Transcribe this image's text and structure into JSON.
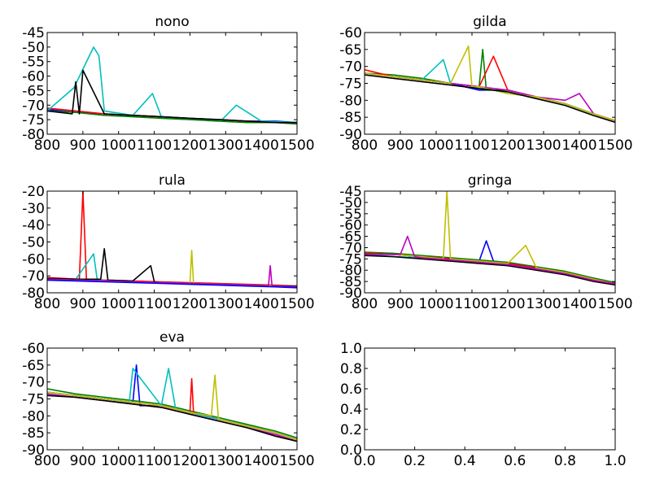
{
  "figure": {
    "background": "#ffffff",
    "line_colors": [
      "#0000ff",
      "#008000",
      "#ff0000",
      "#00bfbf",
      "#bf00bf",
      "#bfbf00",
      "#000000"
    ]
  },
  "chart_data": [
    {
      "type": "line",
      "title": "nono",
      "xlim": [
        800,
        1500
      ],
      "ylim": [
        -80,
        -45
      ],
      "xticks": [
        "800",
        "900",
        "1000",
        "1100",
        "1200",
        "1300",
        "1400",
        "1500"
      ],
      "yticks": [
        "-45",
        "-50",
        "-55",
        "-60",
        "-65",
        "-70",
        "-75",
        "-80"
      ],
      "grid": false,
      "series": [
        {
          "color": "#0000ff",
          "x": [
            800,
            880,
            960,
            1040,
            1120,
            1200,
            1280,
            1360,
            1440,
            1500
          ],
          "y": [
            -71.5,
            -72.5,
            -73,
            -73.5,
            -74,
            -74.5,
            -75,
            -75.5,
            -75.5,
            -76
          ]
        },
        {
          "color": "#008000",
          "x": [
            800,
            880,
            960,
            1040,
            1120,
            1200,
            1280,
            1360,
            1440,
            1500
          ],
          "y": [
            -72,
            -72.5,
            -73.5,
            -74,
            -74.5,
            -75,
            -75.5,
            -76,
            -76,
            -76.5
          ]
        },
        {
          "color": "#ff0000",
          "x": [
            800,
            880,
            960,
            1040,
            1120,
            1200,
            1280,
            1360,
            1440,
            1500
          ],
          "y": [
            -71,
            -72,
            -73,
            -73.5,
            -74,
            -74.5,
            -75,
            -75.5,
            -76,
            -76
          ]
        },
        {
          "color": "#00bfbf",
          "x": [
            800,
            875,
            930,
            945,
            960,
            1040,
            1095,
            1120,
            1200,
            1290,
            1330,
            1400,
            1500
          ],
          "y": [
            -72,
            -64,
            -50,
            -53,
            -72,
            -73.5,
            -66,
            -74,
            -74.5,
            -75,
            -70,
            -75.5,
            -76
          ]
        },
        {
          "color": "#000000",
          "x": [
            800,
            870,
            880,
            890,
            900,
            960,
            1040,
            1120,
            1200,
            1280,
            1360,
            1440,
            1500
          ],
          "y": [
            -72,
            -73,
            -62,
            -73,
            -58,
            -73,
            -73.5,
            -74,
            -74.5,
            -75,
            -75.5,
            -76,
            -76
          ]
        }
      ]
    },
    {
      "type": "line",
      "title": "gilda",
      "xlim": [
        800,
        1500
      ],
      "ylim": [
        -90,
        -60
      ],
      "xticks": [
        "800",
        "900",
        "1000",
        "1100",
        "1200",
        "1300",
        "1400",
        "1500"
      ],
      "yticks": [
        "-60",
        "-65",
        "-70",
        "-75",
        "-80",
        "-85",
        "-90"
      ],
      "grid": false,
      "series": [
        {
          "color": "#0000ff",
          "x": [
            800,
            880,
            960,
            1040,
            1080,
            1120,
            1200,
            1280,
            1360,
            1440,
            1500
          ],
          "y": [
            -72,
            -73,
            -74,
            -75,
            -76,
            -77,
            -77,
            -79,
            -81,
            -84,
            -86
          ]
        },
        {
          "color": "#008000",
          "x": [
            800,
            880,
            960,
            1040,
            1120,
            1130,
            1140,
            1200,
            1280,
            1360,
            1440,
            1500
          ],
          "y": [
            -72,
            -72.5,
            -73.5,
            -75,
            -76,
            -65,
            -77,
            -77,
            -79,
            -81,
            -84,
            -86
          ]
        },
        {
          "color": "#ff0000",
          "x": [
            800,
            880,
            960,
            1040,
            1120,
            1160,
            1200,
            1280,
            1360,
            1440,
            1500
          ],
          "y": [
            -71,
            -73,
            -74,
            -75,
            -76,
            -67,
            -77,
            -79,
            -81,
            -84,
            -86
          ]
        },
        {
          "color": "#00bfbf",
          "x": [
            800,
            880,
            960,
            1020,
            1040,
            1120,
            1200,
            1280,
            1360,
            1440,
            1500
          ],
          "y": [
            -72,
            -73,
            -74,
            -68,
            -75,
            -76,
            -78,
            -79,
            -81,
            -84,
            -86
          ]
        },
        {
          "color": "#bf00bf",
          "x": [
            800,
            880,
            960,
            1040,
            1120,
            1200,
            1280,
            1360,
            1400,
            1440,
            1500
          ],
          "y": [
            -72,
            -73,
            -74,
            -75,
            -76,
            -77,
            -79,
            -80,
            -78,
            -84,
            -86
          ]
        },
        {
          "color": "#bfbf00",
          "x": [
            800,
            880,
            960,
            1040,
            1090,
            1100,
            1120,
            1200,
            1280,
            1360,
            1440,
            1500
          ],
          "y": [
            -72,
            -73,
            -74,
            -75,
            -64,
            -76,
            -76,
            -78,
            -79,
            -81,
            -84,
            -86
          ]
        },
        {
          "color": "#000000",
          "x": [
            800,
            880,
            960,
            1040,
            1120,
            1200,
            1280,
            1360,
            1440,
            1500
          ],
          "y": [
            -72.5,
            -73.5,
            -74.5,
            -75.5,
            -76.5,
            -77.5,
            -79.5,
            -81.5,
            -84.5,
            -86.5
          ]
        }
      ]
    },
    {
      "type": "line",
      "title": "rula",
      "xlim": [
        800,
        1500
      ],
      "ylim": [
        -80,
        -20
      ],
      "xticks": [
        "800",
        "900",
        "1000",
        "1100",
        "1200",
        "1300",
        "1400",
        "1500"
      ],
      "yticks": [
        "-20",
        "-30",
        "-40",
        "-50",
        "-60",
        "-70",
        "-80"
      ],
      "grid": false,
      "series": [
        {
          "color": "#ff0000",
          "x": [
            800,
            890,
            900,
            910,
            960,
            1040,
            1120,
            1200,
            1280,
            1360,
            1440,
            1500
          ],
          "y": [
            -71,
            -72,
            -20,
            -72,
            -72.5,
            -73,
            -73.5,
            -74,
            -74.5,
            -75,
            -75.5,
            -76
          ]
        },
        {
          "color": "#00bfbf",
          "x": [
            800,
            880,
            930,
            940,
            960,
            1040,
            1120,
            1200,
            1280,
            1360,
            1440,
            1500
          ],
          "y": [
            -72,
            -72,
            -57,
            -72,
            -73,
            -73.5,
            -74,
            -74.5,
            -75,
            -75.5,
            -76,
            -76
          ]
        },
        {
          "color": "#000000",
          "x": [
            800,
            880,
            950,
            960,
            970,
            1040,
            1090,
            1100,
            1120,
            1200,
            1280,
            1360,
            1440,
            1500
          ],
          "y": [
            -71.5,
            -72,
            -72,
            -54,
            -72.5,
            -73,
            -64,
            -73.5,
            -74,
            -74.5,
            -75,
            -75.5,
            -76,
            -76
          ]
        },
        {
          "color": "#bfbf00",
          "x": [
            800,
            880,
            960,
            1040,
            1120,
            1200,
            1205,
            1210,
            1280,
            1360,
            1440,
            1500
          ],
          "y": [
            -72,
            -72.5,
            -73,
            -73.5,
            -74,
            -74.5,
            -55,
            -74.5,
            -75,
            -75.5,
            -76,
            -76.5
          ]
        },
        {
          "color": "#bf00bf",
          "x": [
            800,
            880,
            960,
            1040,
            1120,
            1200,
            1280,
            1360,
            1420,
            1425,
            1430,
            1500
          ],
          "y": [
            -72,
            -72.5,
            -73,
            -73.5,
            -74,
            -74.5,
            -75,
            -75.5,
            -76,
            -64,
            -76,
            -76.5
          ]
        },
        {
          "color": "#0000ff",
          "x": [
            800,
            880,
            960,
            1040,
            1120,
            1200,
            1280,
            1360,
            1440,
            1500
          ],
          "y": [
            -72.5,
            -73,
            -73.5,
            -74,
            -74.5,
            -75,
            -75.5,
            -76,
            -76.5,
            -77
          ]
        }
      ]
    },
    {
      "type": "line",
      "title": "gringa",
      "xlim": [
        800,
        1500
      ],
      "ylim": [
        -90,
        -45
      ],
      "xticks": [
        "800",
        "900",
        "1000",
        "1100",
        "1200",
        "1300",
        "1400",
        "1500"
      ],
      "yticks": [
        "-45",
        "-50",
        "-55",
        "-60",
        "-65",
        "-70",
        "-75",
        "-80",
        "-85",
        "-90"
      ],
      "grid": false,
      "series": [
        {
          "color": "#0000ff",
          "x": [
            800,
            880,
            960,
            1040,
            1120,
            1140,
            1160,
            1200,
            1280,
            1360,
            1440,
            1500
          ],
          "y": [
            -73,
            -73,
            -74,
            -75,
            -76,
            -67,
            -76,
            -77,
            -79,
            -81,
            -84,
            -86
          ]
        },
        {
          "color": "#008000",
          "x": [
            800,
            880,
            960,
            1040,
            1120,
            1200,
            1280,
            1360,
            1440,
            1500
          ],
          "y": [
            -72,
            -72.5,
            -73.5,
            -74.5,
            -75.5,
            -76.5,
            -78.5,
            -80.5,
            -83.5,
            -85.5
          ]
        },
        {
          "color": "#ff0000",
          "x": [
            800,
            880,
            960,
            1040,
            1120,
            1200,
            1280,
            1360,
            1440,
            1500
          ],
          "y": [
            -72.5,
            -73,
            -74,
            -75,
            -76,
            -77,
            -79,
            -81,
            -84,
            -86
          ]
        },
        {
          "color": "#00bfbf",
          "x": [
            800,
            880,
            960,
            1040,
            1120,
            1200,
            1280,
            1360,
            1440,
            1500
          ],
          "y": [
            -73,
            -74,
            -74.5,
            -75.5,
            -76.5,
            -77.5,
            -79.5,
            -81.5,
            -84.5,
            -86
          ]
        },
        {
          "color": "#bfbf00",
          "x": [
            800,
            880,
            960,
            1020,
            1030,
            1040,
            1120,
            1200,
            1250,
            1280,
            1360,
            1440,
            1500
          ],
          "y": [
            -73,
            -73,
            -74,
            -75,
            -45,
            -75,
            -76,
            -77,
            -69,
            -79,
            -81,
            -84,
            -86
          ]
        },
        {
          "color": "#000000",
          "x": [
            800,
            880,
            960,
            1040,
            1120,
            1200,
            1280,
            1360,
            1440,
            1500
          ],
          "y": [
            -73.5,
            -74,
            -75,
            -76,
            -77,
            -78,
            -80,
            -82,
            -85,
            -86.5
          ]
        },
        {
          "color": "#bf00bf",
          "x": [
            800,
            900,
            920,
            940,
            960,
            1040,
            1120,
            1200,
            1280,
            1360,
            1440,
            1500
          ],
          "y": [
            -73,
            -73,
            -65,
            -74,
            -74.5,
            -75.5,
            -76.5,
            -77.5,
            -79.5,
            -81.5,
            -84.5,
            -86
          ]
        }
      ]
    },
    {
      "type": "line",
      "title": "eva",
      "xlim": [
        800,
        1500
      ],
      "ylim": [
        -90,
        -60
      ],
      "xticks": [
        "800",
        "900",
        "1000",
        "1100",
        "1200",
        "1300",
        "1400",
        "1500"
      ],
      "yticks": [
        "-60",
        "-65",
        "-70",
        "-75",
        "-80",
        "-85",
        "-90"
      ],
      "grid": false,
      "series": [
        {
          "color": "#0000ff",
          "x": [
            800,
            880,
            960,
            1040,
            1050,
            1060,
            1120,
            1200,
            1280,
            1360,
            1440,
            1500
          ],
          "y": [
            -73,
            -74,
            -75,
            -76,
            -65,
            -77,
            -77,
            -79,
            -81,
            -83,
            -85,
            -87
          ]
        },
        {
          "color": "#008000",
          "x": [
            800,
            880,
            960,
            1040,
            1120,
            1200,
            1280,
            1360,
            1440,
            1500
          ],
          "y": [
            -72,
            -73.5,
            -74.5,
            -75.5,
            -76.5,
            -78.5,
            -80.5,
            -82.5,
            -84.5,
            -86.5
          ]
        },
        {
          "color": "#ff0000",
          "x": [
            800,
            880,
            960,
            1040,
            1120,
            1200,
            1205,
            1210,
            1280,
            1360,
            1440,
            1500
          ],
          "y": [
            -73,
            -74,
            -75,
            -76,
            -77,
            -79,
            -69,
            -79,
            -81,
            -83,
            -85,
            -87
          ]
        },
        {
          "color": "#00bfbf",
          "x": [
            800,
            880,
            960,
            1030,
            1040,
            1120,
            1140,
            1160,
            1200,
            1280,
            1360,
            1440,
            1500
          ],
          "y": [
            -73,
            -74,
            -75,
            -76,
            -66,
            -77,
            -66,
            -78,
            -79,
            -81,
            -83,
            -85,
            -87
          ]
        },
        {
          "color": "#bf00bf",
          "x": [
            800,
            880,
            960,
            1040,
            1120,
            1200,
            1280,
            1360,
            1440,
            1500
          ],
          "y": [
            -73.5,
            -74.5,
            -75.5,
            -76.5,
            -77.5,
            -79.5,
            -81.5,
            -83.5,
            -85.5,
            -87.5
          ]
        },
        {
          "color": "#bfbf00",
          "x": [
            800,
            880,
            960,
            1040,
            1120,
            1200,
            1260,
            1270,
            1280,
            1360,
            1440,
            1500
          ],
          "y": [
            -73,
            -74,
            -75,
            -76,
            -77,
            -79,
            -80,
            -68,
            -81,
            -83,
            -85,
            -87
          ]
        },
        {
          "color": "#000000",
          "x": [
            800,
            880,
            960,
            1040,
            1120,
            1200,
            1280,
            1360,
            1440,
            1500
          ],
          "y": [
            -74,
            -74.5,
            -75.5,
            -76.5,
            -77.5,
            -79.5,
            -81.5,
            -83.5,
            -86,
            -87.5
          ]
        }
      ]
    },
    {
      "type": "line",
      "title": "",
      "xlim": [
        0,
        1
      ],
      "ylim": [
        0,
        1
      ],
      "xticks": [
        "0.0",
        "0.2",
        "0.4",
        "0.6",
        "0.8",
        "1.0"
      ],
      "yticks": [
        "1.0",
        "0.8",
        "0.6",
        "0.4",
        "0.2",
        "0.0"
      ],
      "grid": false,
      "series": []
    }
  ]
}
